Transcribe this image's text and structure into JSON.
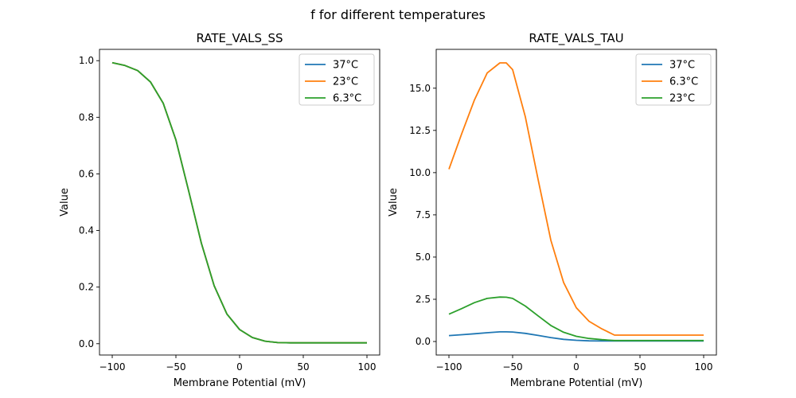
{
  "figure": {
    "suptitle": "f for different temperatures"
  },
  "chart_data": [
    {
      "type": "line",
      "title": "RATE_VALS_SS",
      "xlabel": "Membrane Potential (mV)",
      "ylabel": "Value",
      "xlim": [
        -110,
        110
      ],
      "ylim": [
        -0.04,
        1.04
      ],
      "xticks": [
        -100,
        -50,
        0,
        50,
        100
      ],
      "xtick_labels": [
        "−100",
        "−50",
        "0",
        "50",
        "100"
      ],
      "yticks": [
        0.0,
        0.2,
        0.4,
        0.6,
        0.8,
        1.0
      ],
      "ytick_labels": [
        "0.0",
        "0.2",
        "0.4",
        "0.6",
        "0.8",
        "1.0"
      ],
      "grid": false,
      "legend_position": "top-right",
      "x": [
        -100,
        -90,
        -80,
        -70,
        -60,
        -50,
        -40,
        -30,
        -20,
        -10,
        0,
        10,
        20,
        30,
        40,
        50,
        60,
        70,
        80,
        90,
        100
      ],
      "series": [
        {
          "name": "37°C",
          "color": "#1f77b4",
          "values": [
            0.993,
            0.983,
            0.965,
            0.925,
            0.85,
            0.72,
            0.54,
            0.355,
            0.205,
            0.105,
            0.05,
            0.022,
            0.009,
            0.004,
            0.003,
            0.003,
            0.003,
            0.003,
            0.003,
            0.003,
            0.003
          ]
        },
        {
          "name": "23°C",
          "color": "#ff7f0e",
          "values": [
            0.993,
            0.983,
            0.965,
            0.925,
            0.85,
            0.72,
            0.54,
            0.355,
            0.205,
            0.105,
            0.05,
            0.022,
            0.009,
            0.004,
            0.003,
            0.003,
            0.003,
            0.003,
            0.003,
            0.003,
            0.003
          ]
        },
        {
          "name": "6.3°C",
          "color": "#2ca02c",
          "values": [
            0.993,
            0.983,
            0.965,
            0.925,
            0.85,
            0.72,
            0.54,
            0.355,
            0.205,
            0.105,
            0.05,
            0.022,
            0.009,
            0.004,
            0.003,
            0.003,
            0.003,
            0.003,
            0.003,
            0.003,
            0.003
          ]
        }
      ]
    },
    {
      "type": "line",
      "title": "RATE_VALS_TAU",
      "xlabel": "Membrane Potential (mV)",
      "ylabel": "Value",
      "xlim": [
        -110,
        110
      ],
      "ylim": [
        -0.8,
        17.3
      ],
      "xticks": [
        -100,
        -50,
        0,
        50,
        100
      ],
      "xtick_labels": [
        "−100",
        "−50",
        "0",
        "50",
        "100"
      ],
      "yticks": [
        0.0,
        2.5,
        5.0,
        7.5,
        10.0,
        12.5,
        15.0
      ],
      "ytick_labels": [
        "0.0",
        "2.5",
        "5.0",
        "7.5",
        "10.0",
        "12.5",
        "15.0"
      ],
      "grid": false,
      "legend_position": "top-right",
      "x": [
        -100,
        -90,
        -80,
        -70,
        -60,
        -55,
        -50,
        -40,
        -30,
        -20,
        -10,
        0,
        10,
        20,
        30,
        40,
        50,
        60,
        70,
        80,
        90,
        100
      ],
      "series": [
        {
          "name": "37°C",
          "color": "#1f77b4",
          "values": [
            0.35,
            0.4,
            0.46,
            0.52,
            0.57,
            0.57,
            0.56,
            0.48,
            0.36,
            0.23,
            0.13,
            0.07,
            0.04,
            0.03,
            0.03,
            0.03,
            0.03,
            0.03,
            0.03,
            0.03,
            0.03,
            0.03
          ]
        },
        {
          "name": "6.3°C",
          "color": "#ff7f0e",
          "values": [
            10.2,
            12.3,
            14.3,
            15.9,
            16.5,
            16.5,
            16.1,
            13.3,
            9.6,
            6.0,
            3.5,
            2.0,
            1.2,
            0.75,
            0.38,
            0.38,
            0.38,
            0.38,
            0.38,
            0.38,
            0.38,
            0.38
          ]
        },
        {
          "name": "23°C",
          "color": "#2ca02c",
          "values": [
            1.62,
            1.95,
            2.3,
            2.55,
            2.63,
            2.62,
            2.55,
            2.1,
            1.52,
            0.95,
            0.55,
            0.31,
            0.18,
            0.11,
            0.06,
            0.06,
            0.06,
            0.06,
            0.06,
            0.06,
            0.06,
            0.06
          ]
        }
      ]
    }
  ]
}
